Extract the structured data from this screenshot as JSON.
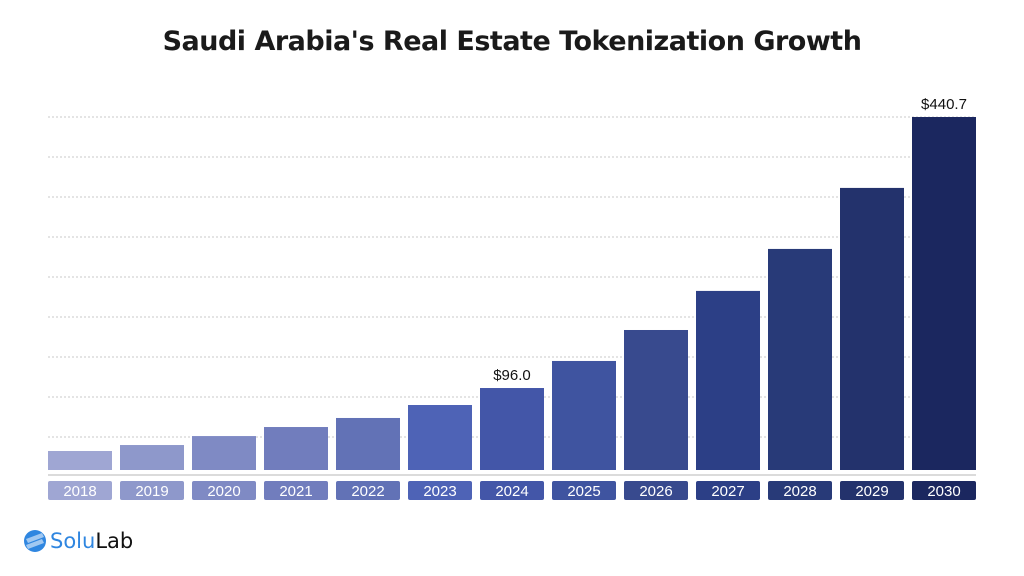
{
  "chart_data": {
    "type": "bar",
    "title": "Saudi Arabia's Real Estate Tokenization Growth",
    "xlabel": "",
    "ylabel": "",
    "grid": true,
    "categories": [
      "2018",
      "2019",
      "2020",
      "2021",
      "2022",
      "2023",
      "2024",
      "2025",
      "2026",
      "2027",
      "2028",
      "2029",
      "2030"
    ],
    "values": [
      15.9,
      23.5,
      34.9,
      46.4,
      57.9,
      74.4,
      96.0,
      130.4,
      169.8,
      219.5,
      272.9,
      350.5,
      440.7
    ],
    "data_labels": {
      "6": "$96.0",
      "12": "$440.7"
    },
    "colors": [
      "#9fa6d3",
      "#8e98cb",
      "#7f8ac4",
      "#717dbd",
      "#6272b6",
      "#4e63b6",
      "#4356a8",
      "#3f54a0",
      "#384a8e",
      "#2c3f86",
      "#283a78",
      "#23326c",
      "#1b275f"
    ]
  },
  "logo": {
    "part1": "Solu",
    "part2": "Lab"
  }
}
